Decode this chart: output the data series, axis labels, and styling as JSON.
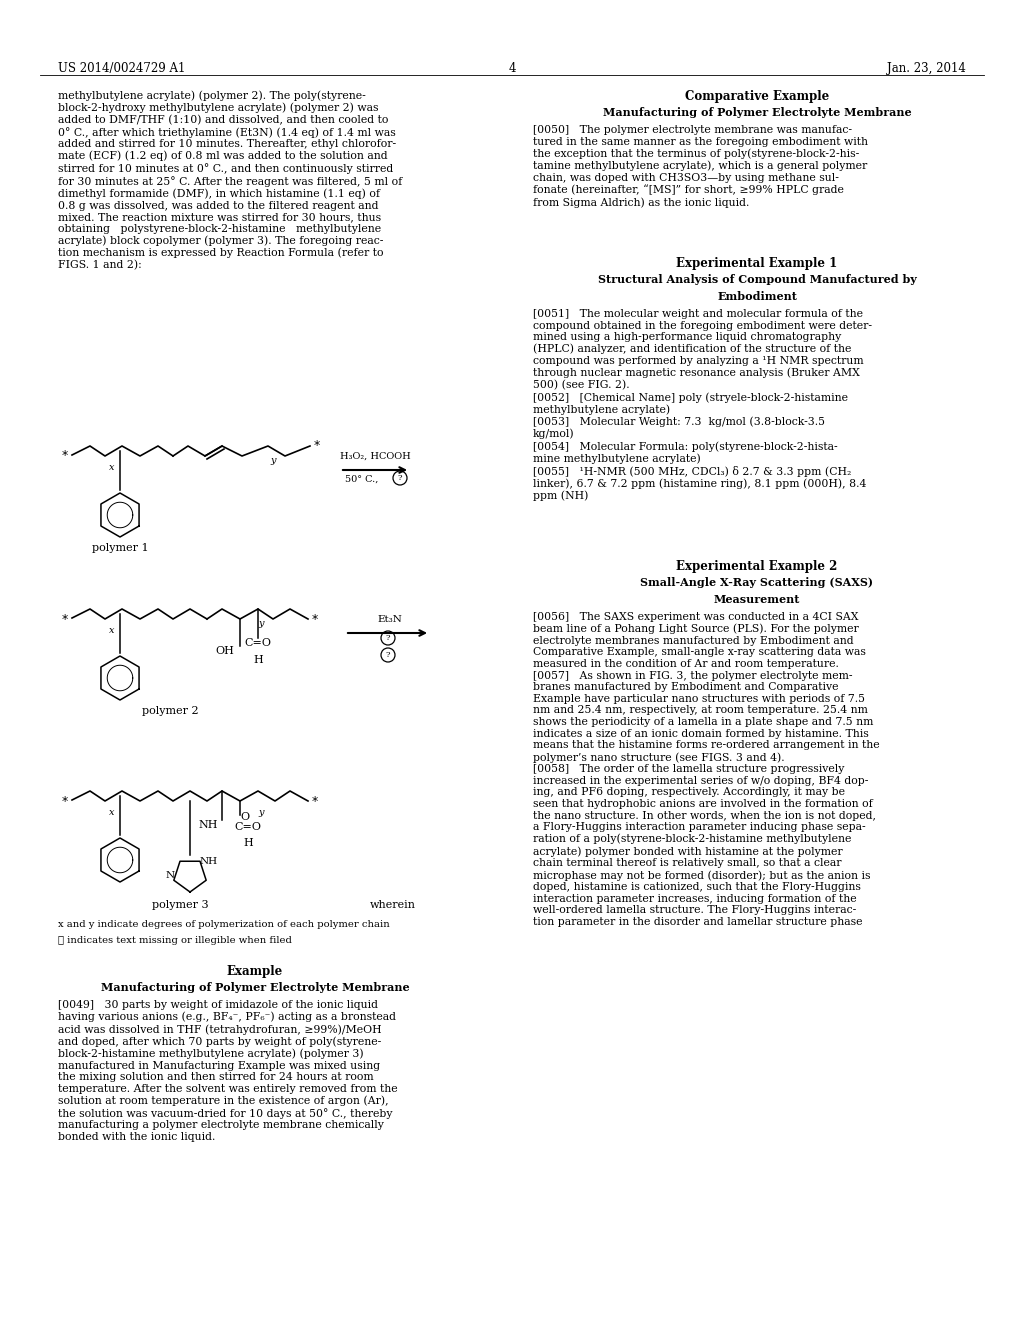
{
  "background_color": "#ffffff",
  "page_number": "4",
  "header_left": "US 2014/0024729 A1",
  "header_right": "Jan. 23, 2014",
  "left_body": "methylbutylene acrylate) (polymer 2). The poly(styrene-\nblock-2-hydroxy methylbutylene acrylate) (polymer 2) was\nadded to DMF/THF (1:10) and dissolved, and then cooled to\n0° C., after which triethylamine (Et3N) (1.4 eq) of 1.4 ml was\nadded and stirred for 10 minutes. Thereafter, ethyl chlorofor-\nmate (ECF) (1.2 eq) of 0.8 ml was added to the solution and\nstirred for 10 minutes at 0° C., and then continuously stirred\nfor 30 minutes at 25° C. After the reagent was filtered, 5 ml of\ndimethyl formamide (DMF), in which histamine (1.1 eq) of\n0.8 g was dissolved, was added to the filtered reagent and\nmixed. The reaction mixture was stirred for 30 hours, thus\nobtaining   polystyrene-block-2-histamine   methylbutylene\nacrylate) block copolymer (polymer 3). The foregoing reac-\ntion mechanism is expressed by Reaction Formula (refer to\nFIGS. 1 and 2):",
  "note1": "x and y indicate degrees of polymerization of each polymer chain",
  "note2": "ⓘ indicates text missing or illegible when filed",
  "example_heading": "Example",
  "example_subheading": "Manufacturing of Polymer Electrolyte Membrane",
  "example_body": "[0049]   30 parts by weight of imidazole of the ionic liquid\nhaving various anions (e.g., BF₄⁻, PF₆⁻) acting as a bronstead\nacid was dissolved in THF (tetrahydrofuran, ≥99%)/MeOH\nand doped, after which 70 parts by weight of poly(styrene-\nblock-2-histamine methylbutylene acrylate) (polymer 3)\nmanufactured in Manufacturing Example was mixed using\nthe mixing solution and then stirred for 24 hours at room\ntemperature. After the solvent was entirely removed from the\nsolution at room temperature in the existence of argon (Ar),\nthe solution was vacuum-dried for 10 days at 50° C., thereby\nmanufacturing a polymer electrolyte membrane chemically\nbonded with the ionic liquid.",
  "comp_heading": "Comparative Example",
  "comp_subheading": "Manufacturing of Polymer Electrolyte Membrane",
  "comp_body": "[0050]   The polymer electrolyte membrane was manufac-\ntured in the same manner as the foregoing embodiment with\nthe exception that the terminus of poly(styrene-block-2-his-\ntamine methylbutylene acrylate), which is a general polymer\nchain, was doped with CH3SO3—by using methane sul-\nfonate (hereinafter, “[MS]” for short, ≥99% HPLC grade\nfrom Sigma Aldrich) as the ionic liquid.",
  "exp1_heading": "Experimental Example 1",
  "exp1_subheading1": "Structural Analysis of Compound Manufactured by",
  "exp1_subheading2": "Embodiment",
  "exp1_body": "[0051]   The molecular weight and molecular formula of the\ncompound obtained in the foregoing embodiment were deter-\nmined using a high-performance liquid chromatography\n(HPLC) analyzer, and identification of the structure of the\ncompound was performed by analyzing a ¹H NMR spectrum\nthrough nuclear magnetic resonance analysis (Bruker AMX\n500) (see FIG. 2).\n[0052]   [Chemical Name] poly (stryele-block-2-histamine\nmethylbutylene acrylate)\n[0053]   Molecular Weight: 7.3  kg/mol (3.8-block-3.5\nkg/mol)\n[0054]   Molecular Formula: poly(styrene-block-2-hista-\nmine methylbutylene acrylate)\n[0055]   ¹H-NMR (500 MHz, CDCl₃) δ 2.7 & 3.3 ppm (CH₂\nlinker), 6.7 & 7.2 ppm (histamine ring), 8.1 ppm (000H), 8.4\nppm (NH)",
  "exp2_heading": "Experimental Example 2",
  "exp2_subheading1": "Small-Angle X-Ray Scattering (SAXS)",
  "exp2_subheading2": "Measurement",
  "exp2_body": "[0056]   The SAXS experiment was conducted in a 4CI SAX\nbeam line of a Pohang Light Source (PLS). For the polymer\nelectrolyte membranes manufactured by Embodiment and\nComparative Example, small-angle x-ray scattering data was\nmeasured in the condition of Ar and room temperature.\n[0057]   As shown in FIG. 3, the polymer electrolyte mem-\nbranes manufactured by Embodiment and Comparative\nExample have particular nano structures with periods of 7.5\nnm and 25.4 nm, respectively, at room temperature. 25.4 nm\nshows the periodicity of a lamella in a plate shape and 7.5 nm\nindicates a size of an ionic domain formed by histamine. This\nmeans that the histamine forms re-ordered arrangement in the\npolymer’s nano structure (see FIGS. 3 and 4).\n[0058]   The order of the lamella structure progressively\nincreased in the experimental series of w/o doping, BF4 dop-\ning, and PF6 doping, respectively. Accordingly, it may be\nseen that hydrophobic anions are involved in the formation of\nthe nano structure. In other words, when the ion is not doped,\na Flory-Huggins interaction parameter inducing phase sepa-\nration of a poly(styrene-block-2-histamine methylbutylene\nacrylate) polymer bonded with histamine at the polymer\nchain terminal thereof is relatively small, so that a clear\nmicrophase may not be formed (disorder); but as the anion is\ndoped, histamine is cationized, such that the Flory-Huggins\ninteraction parameter increases, inducing formation of the\nwell-ordered lamella structure. The Flory-Huggins interac-\ntion parameter in the disorder and lamellar structure phase"
}
